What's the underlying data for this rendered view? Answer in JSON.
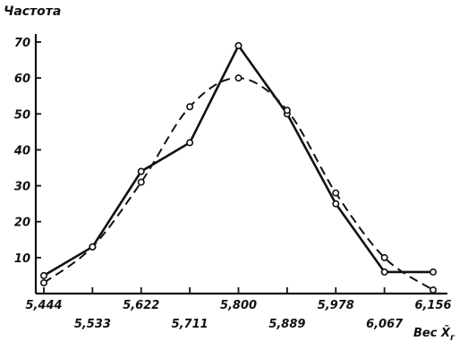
{
  "chart_data": {
    "type": "line",
    "ylabel": "Частота",
    "xlabel": "Вес X̄",
    "xlabel_subscript": "г",
    "xlim": [
      5.4,
      6.2
    ],
    "ylim": [
      0,
      70
    ],
    "yticks": [
      10,
      20,
      30,
      40,
      50,
      60,
      70
    ],
    "xticks_upper": [
      "5,444",
      "5,622",
      "5,800",
      "5,978",
      "6,156"
    ],
    "xticks_lower": [
      "5,533",
      "5,711",
      "5,889",
      "6,067"
    ],
    "xtick_values": [
      5.444,
      5.533,
      5.622,
      5.711,
      5.8,
      5.889,
      5.978,
      6.067,
      6.156
    ],
    "grid": false,
    "series": [
      {
        "style": "solid",
        "x": [
          5.444,
          5.533,
          5.622,
          5.711,
          5.8,
          5.889,
          5.978,
          6.067,
          6.156
        ],
        "y": [
          5,
          13,
          34,
          42,
          69,
          50,
          25,
          6,
          6
        ]
      },
      {
        "style": "dashed",
        "x": [
          5.444,
          5.533,
          5.622,
          5.711,
          5.8,
          5.889,
          5.978,
          6.067,
          6.156
        ],
        "y": [
          3,
          13,
          31,
          52,
          60,
          51,
          28,
          10,
          1
        ]
      }
    ]
  }
}
